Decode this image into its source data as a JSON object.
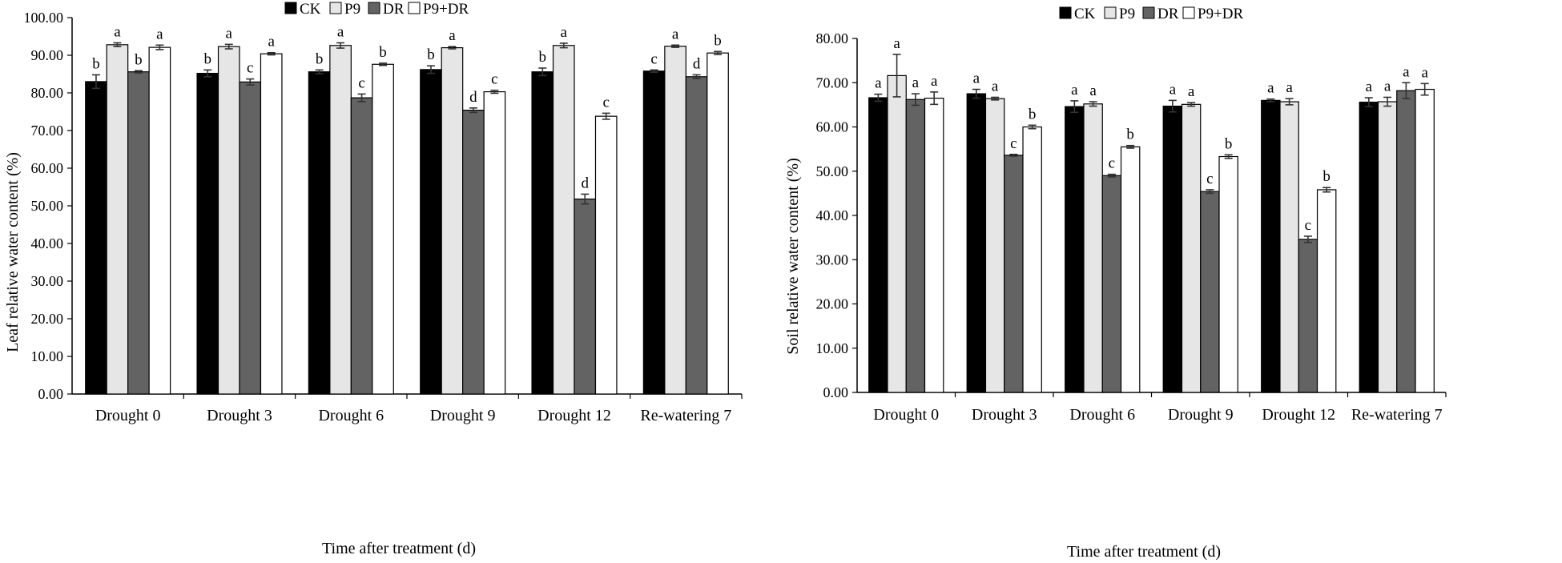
{
  "chart_data": [
    {
      "type": "bar",
      "title": "",
      "xlabel": "Time after treatment (d)",
      "ylabel": "Leaf relative water content (%)",
      "ylim": [
        0,
        100
      ],
      "yticks": [
        "0.00",
        "10.00",
        "20.00",
        "30.00",
        "40.00",
        "50.00",
        "60.00",
        "70.00",
        "80.00",
        "90.00",
        "100.00"
      ],
      "categories": [
        "Drought 0",
        "Drought 3",
        "Drought 6",
        "Drought 9",
        "Drought 12",
        "Re-watering 7"
      ],
      "legend_position": "top-center",
      "grid": false,
      "series": [
        {
          "name": "CK",
          "color": "#000000",
          "values": [
            83.0,
            85.2,
            85.6,
            86.2,
            85.6,
            85.8
          ],
          "errors": [
            1.8,
            0.9,
            0.5,
            1.0,
            1.0,
            0.3
          ],
          "letters": [
            "b",
            "b",
            "b",
            "b",
            "b",
            "c"
          ]
        },
        {
          "name": "P9",
          "color": "#e6e6e6",
          "values": [
            92.8,
            92.3,
            92.6,
            92.0,
            92.6,
            92.4
          ],
          "errors": [
            0.5,
            0.6,
            0.7,
            0.3,
            0.6,
            0.3
          ],
          "letters": [
            "a",
            "a",
            "a",
            "a",
            "a",
            "a"
          ]
        },
        {
          "name": "DR",
          "color": "#636363",
          "values": [
            85.6,
            82.9,
            78.7,
            75.4,
            51.8,
            84.3
          ],
          "errors": [
            0.3,
            0.8,
            1.0,
            0.6,
            1.3,
            0.5
          ],
          "letters": [
            "b",
            "c",
            "c",
            "d",
            "d",
            "d"
          ]
        },
        {
          "name": "P9+DR",
          "color": "#ffffff",
          "values": [
            92.1,
            90.4,
            87.6,
            80.3,
            73.8,
            90.6
          ],
          "errors": [
            0.6,
            0.3,
            0.3,
            0.4,
            0.8,
            0.4
          ],
          "letters": [
            "a",
            "a",
            "b",
            "c",
            "c",
            "b"
          ]
        }
      ]
    },
    {
      "type": "bar",
      "title": "",
      "xlabel": "Time after treatment (d)",
      "ylabel": "Soil relative water content (%)",
      "ylim": [
        0,
        80
      ],
      "yticks": [
        "0.00",
        "10.00",
        "20.00",
        "30.00",
        "40.00",
        "50.00",
        "60.00",
        "70.00",
        "80.00"
      ],
      "categories": [
        "Drought 0",
        "Drought 3",
        "Drought 6",
        "Drought 9",
        "Drought 12",
        "Re-watering 7"
      ],
      "legend_position": "top-center",
      "grid": false,
      "series": [
        {
          "name": "CK",
          "color": "#000000",
          "values": [
            66.6,
            67.5,
            64.6,
            64.7,
            66.0,
            65.6
          ],
          "errors": [
            0.8,
            1.0,
            1.3,
            1.3,
            0.3,
            1.0
          ],
          "letters": [
            "a",
            "a",
            "a",
            "a",
            "a",
            "a"
          ]
        },
        {
          "name": "P9",
          "color": "#e6e6e6",
          "values": [
            71.6,
            66.4,
            65.2,
            65.1,
            65.7,
            65.7
          ],
          "errors": [
            4.8,
            0.3,
            0.5,
            0.4,
            0.7,
            1.0
          ],
          "letters": [
            "a",
            "a",
            "a",
            "a",
            "a",
            "a"
          ]
        },
        {
          "name": "DR",
          "color": "#636363",
          "values": [
            66.2,
            53.6,
            49.0,
            45.4,
            34.6,
            68.2
          ],
          "errors": [
            1.3,
            0.2,
            0.3,
            0.4,
            0.7,
            1.8
          ],
          "letters": [
            "a",
            "c",
            "c",
            "c",
            "c",
            "a"
          ]
        },
        {
          "name": "P9+DR",
          "color": "#ffffff",
          "values": [
            66.5,
            60.0,
            55.5,
            53.3,
            45.8,
            68.5
          ],
          "errors": [
            1.4,
            0.4,
            0.3,
            0.4,
            0.5,
            1.3
          ],
          "letters": [
            "a",
            "b",
            "b",
            "b",
            "b",
            "a"
          ]
        }
      ]
    }
  ]
}
